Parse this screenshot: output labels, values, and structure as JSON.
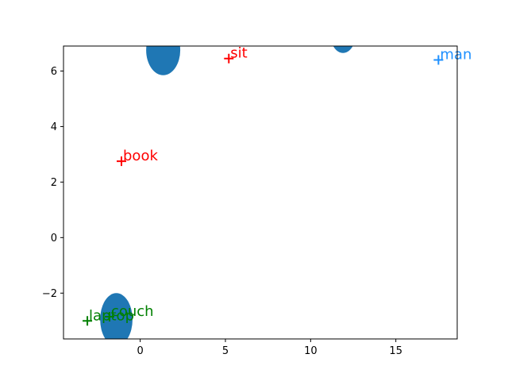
{
  "chart_data": {
    "type": "scatter",
    "title": "",
    "xlabel": "",
    "ylabel": "",
    "xlim": [
      -4.5,
      18.6
    ],
    "ylim": [
      -3.65,
      6.9
    ],
    "xticks": [
      0,
      5,
      10,
      15
    ],
    "xtick_labels": [
      "0",
      "5",
      "10",
      "15"
    ],
    "yticks": [
      -2,
      0,
      2,
      4,
      6
    ],
    "ytick_labels": [
      "−2",
      "0",
      "2",
      "4",
      "6"
    ],
    "grid": false,
    "ellipses": {
      "color": "#1f77b4",
      "items": [
        {
          "cx": 1.35,
          "cy": 6.75,
          "rx": 1.0,
          "ry": 0.9
        },
        {
          "cx": 11.9,
          "cy": 7.35,
          "rx": 0.75,
          "ry": 0.7
        },
        {
          "cx": -1.4,
          "cy": -2.95,
          "rx": 0.95,
          "ry": 0.95
        }
      ]
    },
    "points": [
      {
        "label": "sit",
        "x": 5.2,
        "y": 6.45,
        "color": "#ff0000"
      },
      {
        "label": "book",
        "x": -1.1,
        "y": 2.75,
        "color": "#ff0000"
      },
      {
        "label": "man",
        "x": 17.5,
        "y": 6.4,
        "color": "#1e90ff"
      },
      {
        "label": "laptop",
        "x": -3.1,
        "y": -3.0,
        "color": "#008000"
      },
      {
        "label": "couch",
        "x": -1.8,
        "y": -2.85,
        "color": "#008000"
      }
    ]
  }
}
